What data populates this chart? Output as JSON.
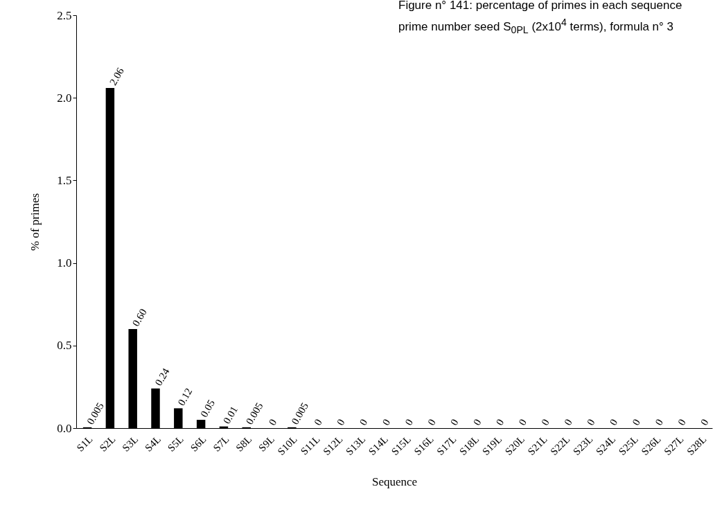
{
  "chart_data": {
    "type": "bar",
    "title": "Figure n° 141: percentage of primes in each sequence prime number seed S$_{0PL}$ (2x10$^{4}$ terms), formula n° 3",
    "xlabel": "Sequence",
    "ylabel": "% of primes",
    "categories": [
      "S1L",
      "S2L",
      "S3L",
      "S4L",
      "S5L",
      "S6L",
      "S7L",
      "S8L",
      "S9L",
      "S10L",
      "S11L",
      "S12L",
      "S13L",
      "S14L",
      "S15L",
      "S16L",
      "S17L",
      "S18L",
      "S19L",
      "S20L",
      "S21L",
      "S22L",
      "S23L",
      "S24L",
      "S25L",
      "S26L",
      "S27L",
      "S28L"
    ],
    "values": [
      0.005,
      2.06,
      0.6,
      0.24,
      0.12,
      0.05,
      0.01,
      0.005,
      0,
      0.005,
      0,
      0,
      0,
      0,
      0,
      0,
      0,
      0,
      0,
      0,
      0,
      0,
      0,
      0,
      0,
      0,
      0,
      0
    ],
    "value_labels": [
      "0.005",
      "2.06",
      "0.60",
      "0.24",
      "0.12",
      "0.05",
      "0.01",
      "0.005",
      "0",
      "0.005",
      "0",
      "0",
      "0",
      "0",
      "0",
      "0",
      "0",
      "0",
      "0",
      "0",
      "0",
      "0",
      "0",
      "0",
      "0",
      "0",
      "0",
      "0"
    ],
    "color": "#000000",
    "ylim": [
      0,
      2.5
    ],
    "yticks": [
      {
        "value": 0,
        "label": "0.0"
      },
      {
        "value": 0.5,
        "label": "0.5"
      },
      {
        "value": 1,
        "label": "1.0"
      },
      {
        "value": 1.5,
        "label": "1.5"
      },
      {
        "value": 2,
        "label": "2.0"
      },
      {
        "value": 2.5,
        "label": "2.5"
      }
    ]
  }
}
